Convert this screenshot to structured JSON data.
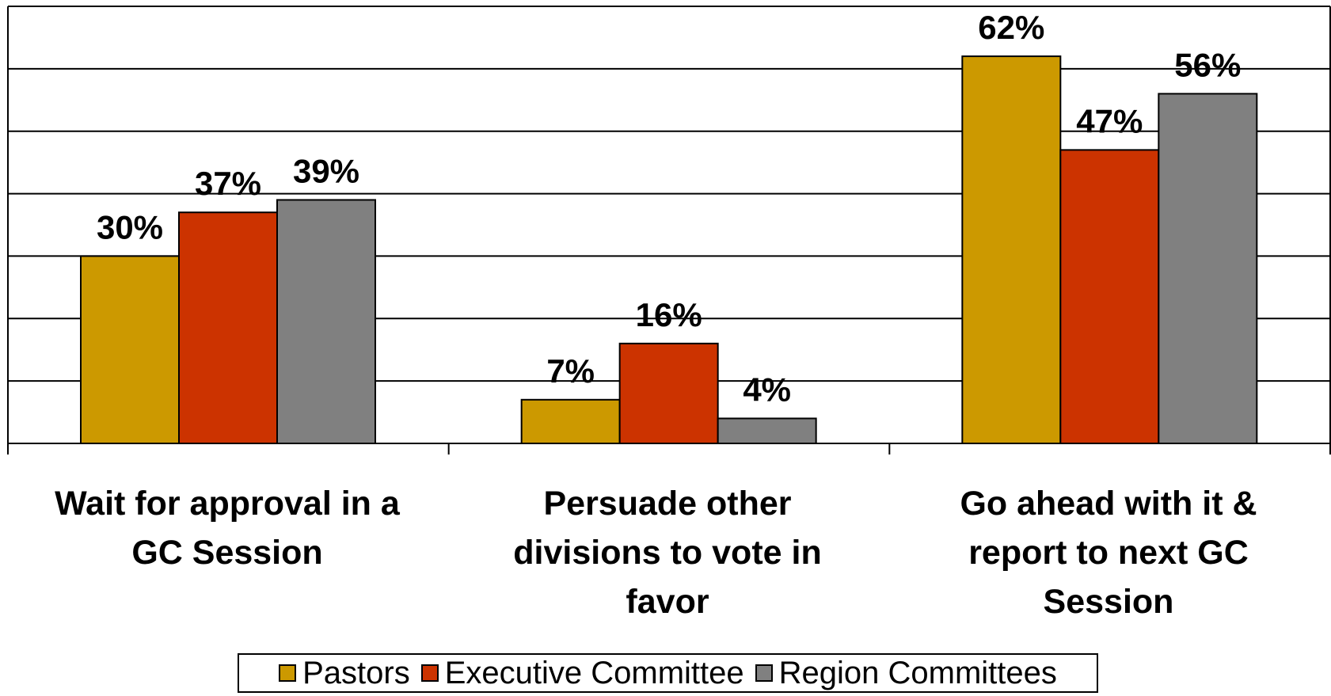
{
  "chart_data": {
    "type": "bar",
    "categories": [
      "Wait for approval in a GC Session",
      "Persuade other divisions to vote in favor",
      "Go ahead with it & report to next GC Session"
    ],
    "series": [
      {
        "name": "Pastors",
        "color": "#CC9900",
        "values": [
          30,
          7,
          62
        ],
        "labels": [
          "30%",
          "7%",
          "62%"
        ]
      },
      {
        "name": "Executive Committee",
        "color": "#CC3300",
        "values": [
          37,
          16,
          47
        ],
        "labels": [
          "37%",
          "16%",
          "47%"
        ]
      },
      {
        "name": "Region Committees",
        "color": "#808080",
        "values": [
          39,
          4,
          56
        ],
        "labels": [
          "39%",
          "4%",
          "56%"
        ]
      }
    ],
    "ylim": [
      0,
      70
    ],
    "grid": true,
    "legend_position": "bottom"
  }
}
